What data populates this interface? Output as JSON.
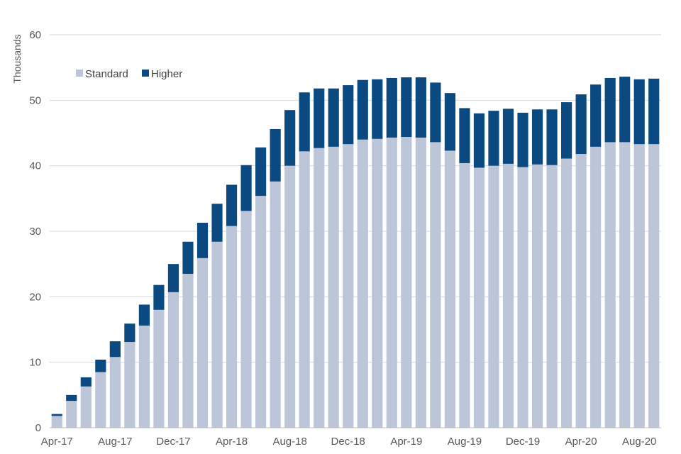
{
  "chart_data": {
    "type": "bar",
    "stacked": true,
    "ylabel": "Thousands",
    "ylim": [
      0,
      60
    ],
    "yticks": [
      0,
      10,
      20,
      30,
      40,
      50,
      60
    ],
    "grid": true,
    "legend_position": "top-left",
    "categories": [
      "Apr-17",
      "May-17",
      "Jun-17",
      "Jul-17",
      "Aug-17",
      "Sep-17",
      "Oct-17",
      "Nov-17",
      "Dec-17",
      "Jan-18",
      "Feb-18",
      "Mar-18",
      "Apr-18",
      "May-18",
      "Jun-18",
      "Jul-18",
      "Aug-18",
      "Sep-18",
      "Oct-18",
      "Nov-18",
      "Dec-18",
      "Jan-19",
      "Feb-19",
      "Mar-19",
      "Apr-19",
      "May-19",
      "Jun-19",
      "Jul-19",
      "Aug-19",
      "Sep-19",
      "Oct-19",
      "Nov-19",
      "Dec-19",
      "Jan-20",
      "Feb-20",
      "Mar-20",
      "Apr-20",
      "May-20",
      "Jun-20",
      "Jul-20",
      "Aug-20",
      "Sep-20"
    ],
    "shown_tick_labels": [
      "Apr-17",
      "Aug-17",
      "Dec-17",
      "Apr-18",
      "Aug-18",
      "Dec-18",
      "Apr-19",
      "Aug-19",
      "Dec-19",
      "Apr-20",
      "Aug-20"
    ],
    "series": [
      {
        "name": "Standard",
        "color": "#bdc5d8",
        "values": [
          1.8,
          4.1,
          6.3,
          8.5,
          10.8,
          13.1,
          15.6,
          18.0,
          20.7,
          23.5,
          25.9,
          28.4,
          30.8,
          33.1,
          35.4,
          37.6,
          40.0,
          42.2,
          42.7,
          42.9,
          43.3,
          44.0,
          44.1,
          44.3,
          44.4,
          44.3,
          43.6,
          42.3,
          40.4,
          39.7,
          40.0,
          40.3,
          39.8,
          40.2,
          40.1,
          41.1,
          41.8,
          42.9,
          43.6,
          43.6,
          43.3,
          43.3
        ]
      },
      {
        "name": "Higher",
        "color": "#0b4a80",
        "values": [
          0.3,
          0.9,
          1.4,
          1.9,
          2.4,
          2.8,
          3.2,
          3.8,
          4.3,
          4.9,
          5.4,
          5.8,
          6.3,
          7.0,
          7.4,
          8.0,
          8.5,
          9.0,
          9.1,
          8.9,
          9.0,
          9.1,
          9.1,
          9.1,
          9.1,
          9.2,
          9.1,
          8.8,
          8.4,
          8.3,
          8.4,
          8.4,
          8.3,
          8.4,
          8.5,
          8.6,
          9.1,
          9.5,
          9.8,
          10.0,
          9.9,
          10.0
        ]
      }
    ]
  }
}
